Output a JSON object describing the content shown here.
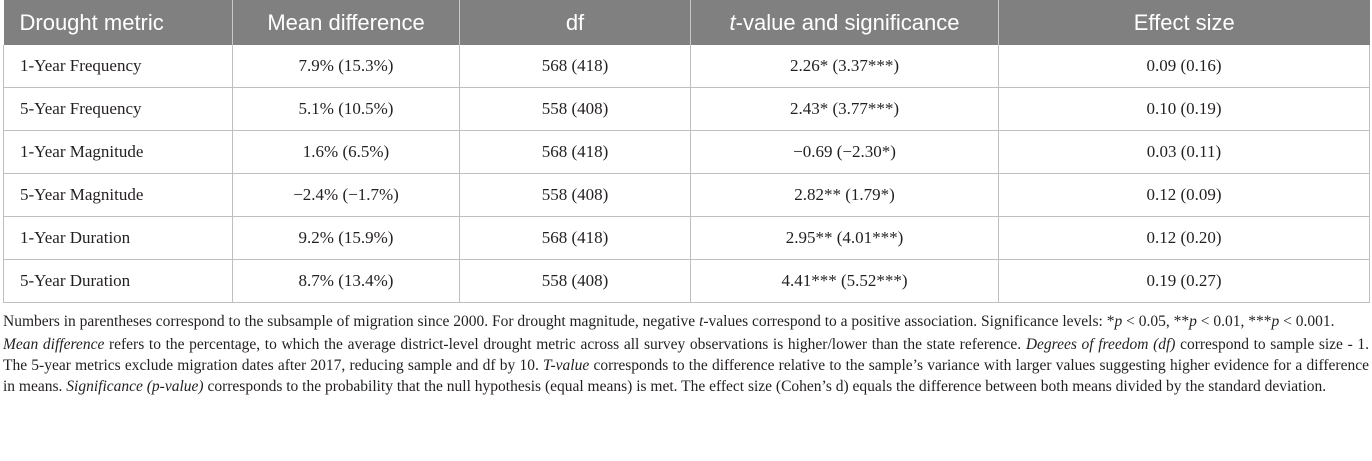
{
  "table": {
    "headers": [
      "Drought metric",
      "Mean difference",
      "df",
      "-value and significance",
      "Effect size"
    ],
    "header_t": "t",
    "rows": [
      [
        "1-Year Frequency",
        "7.9% (15.3%)",
        "568 (418)",
        "2.26* (3.37***)",
        "0.09 (0.16)"
      ],
      [
        "5-Year Frequency",
        "5.1% (10.5%)",
        "558 (408)",
        "2.43* (3.77***)",
        "0.10 (0.19)"
      ],
      [
        "1-Year Magnitude",
        "1.6% (6.5%)",
        "568 (418)",
        "−0.69 (−2.30*)",
        "0.03 (0.11)"
      ],
      [
        "5-Year Magnitude",
        "−2.4% (−1.7%)",
        "558 (408)",
        "2.82** (1.79*)",
        "0.12 (0.09)"
      ],
      [
        "1-Year Duration",
        "9.2% (15.9%)",
        "568 (418)",
        "2.95** (4.01***)",
        "0.12 (0.20)"
      ],
      [
        "5-Year Duration",
        "8.7% (13.4%)",
        "558 (408)",
        "4.41*** (5.52***)",
        "0.19 (0.27)"
      ]
    ]
  },
  "notes": {
    "n1_a": "Numbers in parentheses correspond to the subsample of migration since 2000. For drought magnitude, negative ",
    "n1_t": "t",
    "n1_b": "-values correspond to a positive association. Significance levels: *",
    "n1_p1": "p",
    "n1_c": " < 0.05, **",
    "n1_p2": "p",
    "n1_d": " < 0.01, ***",
    "n1_p3": "p",
    "n1_e": " < 0.001.",
    "n2_md": "Mean difference",
    "n2_a": " refers to the percentage, to which the average district-level drought metric across all survey observations is higher/lower than the state reference. ",
    "n2_dof": "Degrees of freedom (df)",
    "n2_b": " correspond to sample size - 1. The 5-year metrics exclude migration dates after 2017, reducing sample and df by 10. ",
    "n2_tv": "T-value",
    "n2_c": " corresponds to the difference relative to the sample’s variance with larger values suggesting higher evidence for a difference in means. ",
    "n2_sig": "Significance (p-value)",
    "n2_d": " corresponds to the probability that the null hypothesis (equal means) is met. The effect size (Cohen’s d) equals the difference between both means divided by the standard deviation."
  }
}
